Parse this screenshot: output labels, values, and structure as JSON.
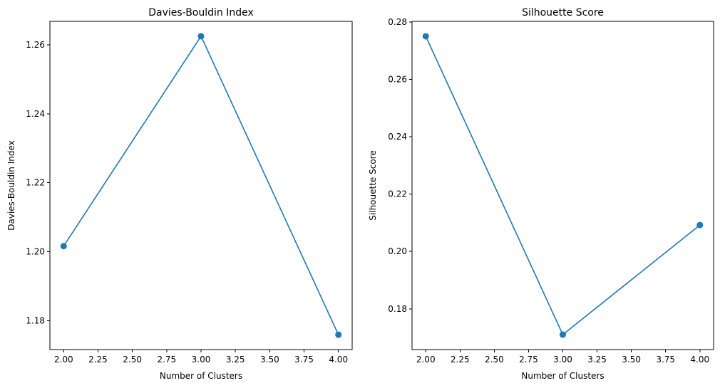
{
  "chart_data": [
    {
      "type": "line",
      "title": "Davies-Bouldin Index",
      "xlabel": "Number of Clusters",
      "ylabel": "Davies-Bouldin Index",
      "x": [
        2,
        3,
        4
      ],
      "series": [
        {
          "values": [
            1.2016,
            1.2625,
            1.1759
          ],
          "color": "#1f77b4"
        }
      ],
      "xlim": [
        1.9,
        4.1
      ],
      "ylim": [
        1.1716,
        1.2668
      ],
      "xticks": [
        "2.00",
        "2.25",
        "2.50",
        "2.75",
        "3.00",
        "3.25",
        "3.50",
        "3.75",
        "4.00"
      ],
      "yticks": [
        "1.18",
        "1.20",
        "1.22",
        "1.24",
        "1.26"
      ],
      "grid": false,
      "marker": "circle"
    },
    {
      "type": "line",
      "title": "Silhouette Score",
      "xlabel": "Number of Clusters",
      "ylabel": "Silhouette Score",
      "x": [
        2,
        3,
        4
      ],
      "series": [
        {
          "values": [
            0.275,
            0.171,
            0.2092
          ],
          "color": "#1f77b4"
        }
      ],
      "xlim": [
        1.9,
        4.1
      ],
      "ylim": [
        0.1658,
        0.2802
      ],
      "xticks": [
        "2.00",
        "2.25",
        "2.50",
        "2.75",
        "3.00",
        "3.25",
        "3.50",
        "3.75",
        "4.00"
      ],
      "yticks": [
        "0.18",
        "0.20",
        "0.22",
        "0.24",
        "0.26",
        "0.28"
      ],
      "grid": false,
      "marker": "circle"
    }
  ]
}
